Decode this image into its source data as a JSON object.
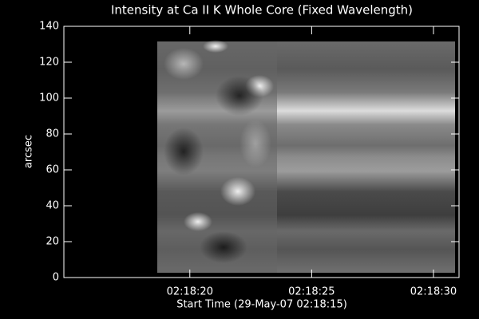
{
  "chart_data": {
    "type": "image",
    "title": "Intensity at Ca II K Whole Core (Fixed Wavelength)",
    "x_label": "Start Time (29-May-07 02:18:15)",
    "y_label": "arcsec",
    "xlim": [
      -0.17,
      16.05
    ],
    "xticks": [
      {
        "value": 5,
        "label": "02:18:20"
      },
      {
        "value": 10,
        "label": "02:18:25"
      },
      {
        "value": 15,
        "label": "02:18:30"
      }
    ],
    "ylim": [
      0,
      140
    ],
    "yticks": [
      0,
      20,
      40,
      60,
      80,
      100,
      120,
      140
    ]
  }
}
